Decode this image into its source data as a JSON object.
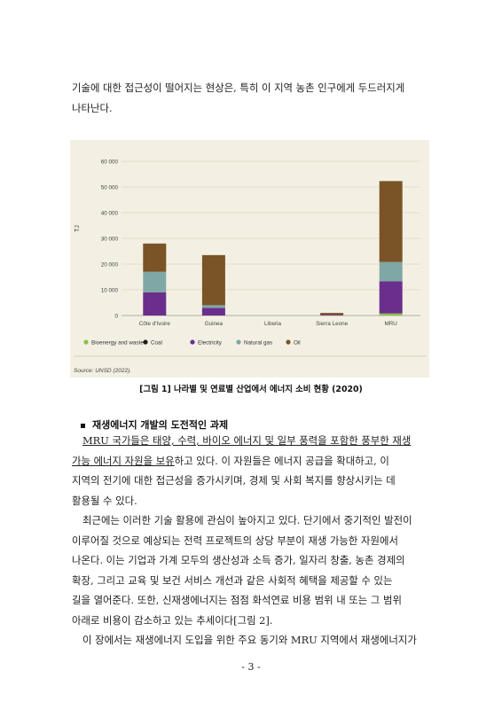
{
  "intro_lines": [
    "기술에 대한 접근성이 떨어지는 현상은, 특히 이 지역 농촌 인구에게 두드러지게",
    "나타난다."
  ],
  "figure_caption": "[그림 1] 나라별 및 연료별 산업에서 에너지 소비 현황 (2020)",
  "figure_source": "Source: UNSD (2022).",
  "section_heading": "재생에너지 개발의 도전적인 과제",
  "body_lines": [
    {
      "text": "MRU 국가들은 태양, 수력, 바이오 에너지 및 일부 풍력을 포함한 풍부한 재생",
      "indent": true,
      "underline": true
    },
    {
      "text": "가능 에너지 자원을 보유",
      "suffix": "하고 있다. 이 자원들은 에너지 공급을 확대하고, 이",
      "underline": true
    },
    {
      "text": "지역의 전기에 대한 접근성을 증가시키며, 경제 및 사회 복지를 향상시키는 데"
    },
    {
      "text": "활용될 수 있다."
    },
    {
      "text": "최근에는 이러한 기술 활용에 관심이 높아지고 있다. 단기에서 중기적인 발전이",
      "indent": true
    },
    {
      "text": "이루어질 것으로 예상되는 전력 프로젝트의 상당 부분이 재생 가능한 자원에서"
    },
    {
      "text": "나온다. 이는 기업과 가계 모두의 생산성과 소득 증가, 일자리 창출, 농촌 경제의"
    },
    {
      "text": "확장, 그리고 교육 및 보건 서비스 개선과 같은 사회적 혜택을 제공할 수 있는"
    },
    {
      "text": "길을 열어준다. 또한, 신재생에너지는 점점 화석연료 비용 범위 내 또는 그 범위"
    },
    {
      "text": "아래로 비용이 감소하고 있는 추세이다[그림 2]."
    },
    {
      "text": "이 장에서는 재생에너지 도입을 위한 주요 동기와 MRU 지역에서 재생에너지가",
      "indent": true
    }
  ],
  "page_number": "- 3 -",
  "colors": {
    "background": "#f3f0e3",
    "bioenergy": "#8bc34a",
    "coal": "#1d1d1d",
    "electricity": "#6a2f8c",
    "natural_gas": "#7fa7a5",
    "oil": "#7a5426"
  },
  "chart_data": {
    "type": "bar",
    "stacked": true,
    "ylabel": "TJ",
    "ylim": [
      0,
      60000
    ],
    "yticks": [
      "60 000",
      "50 000",
      "40 000",
      "30 000",
      "20 000",
      "10 000",
      "0"
    ],
    "categories": [
      "Côte d'Ivoire",
      "Guinea",
      "Liberia",
      "Sierra Leone",
      "MRU"
    ],
    "series": [
      {
        "name": "Bioenergy and waste",
        "color": "#8bc34a",
        "values": [
          0,
          0,
          0,
          0,
          800
        ]
      },
      {
        "name": "Coal",
        "color": "#1d1d1d",
        "values": [
          0,
          0,
          0,
          0,
          0
        ]
      },
      {
        "name": "Electricity",
        "color": "#6a2f8c",
        "values": [
          9000,
          3000,
          0,
          300,
          12500
        ]
      },
      {
        "name": "Natural gas",
        "color": "#7fa7a5",
        "values": [
          8000,
          1000,
          0,
          0,
          7500
        ]
      },
      {
        "name": "Oil",
        "color": "#7a5426",
        "values": [
          11000,
          19500,
          0,
          700,
          31500
        ]
      }
    ],
    "legend_position": "bottom",
    "grid": true,
    "source": "Source: UNSD (2022)."
  }
}
